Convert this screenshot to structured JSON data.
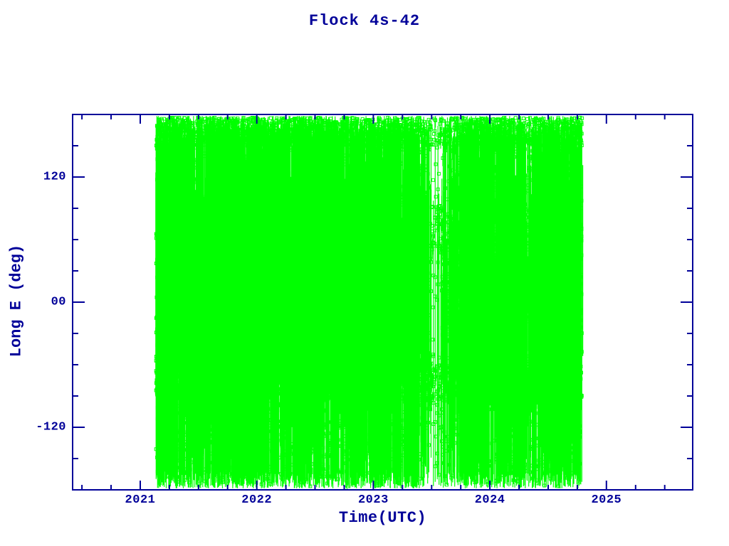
{
  "page": {
    "background": "#ffffff"
  },
  "chart_data": {
    "type": "line",
    "title": "Flock 4s-42",
    "xlabel": "Time(UTC)",
    "ylabel": "Long E (deg)",
    "axis_color": "#000099",
    "data_color": "#00ff00",
    "grid": false,
    "legend": null,
    "xlim": [
      2020.42,
      2025.74
    ],
    "ylim": [
      -180,
      180
    ],
    "x_ticks": [
      {
        "value": 2021,
        "label": "2021"
      },
      {
        "value": 2022,
        "label": "2022"
      },
      {
        "value": 2023,
        "label": "2023"
      },
      {
        "value": 2024,
        "label": "2024"
      },
      {
        "value": 2025,
        "label": "2025"
      }
    ],
    "x_minor_step": 0.25,
    "y_ticks": [
      {
        "value": 120,
        "label": "120"
      },
      {
        "value": 0,
        "label": "00"
      },
      {
        "value": -120,
        "label": "-120"
      }
    ],
    "y_minor_step": 30,
    "series": [
      {
        "name": "satellite-longitude-ground-track",
        "marker": "open-square",
        "color": "#00ff00",
        "description": "Dense wrap-around longitude-vs-time traces spanning -180 to +180 deg, rendered as near-vertical green lines with small open-square data markers",
        "coverage": {
          "t_start": 2021.135,
          "t_end": 2024.79
        }
      }
    ],
    "render": {
      "seed": 1337,
      "passes": 2600,
      "density_intervals": [
        [
          2021.135,
          2023.4,
          1.0
        ],
        [
          2023.4,
          2023.47,
          0.55
        ],
        [
          2023.47,
          2023.58,
          0.13
        ],
        [
          2023.58,
          2023.72,
          0.55
        ],
        [
          2023.72,
          2024.79,
          0.97
        ]
      ],
      "marker_bands": [
        {
          "name": "north-edge-cluster",
          "t": [
            2021.135,
            2024.79
          ],
          "deg": [
            146,
            177
          ],
          "count": 700
        },
        {
          "name": "south-accumulation-band",
          "t": [
            2021.135,
            2024.79
          ],
          "deg": [
            -95,
            -58
          ],
          "count": 950
        },
        {
          "name": "late-mid-north-cluster",
          "t": [
            2023.5,
            2024.6
          ],
          "deg": [
            50,
            95
          ],
          "count": 380
        },
        {
          "name": "late-mid-fill",
          "t": [
            2023.58,
            2024.45
          ],
          "deg": [
            -65,
            65
          ],
          "count": 500
        },
        {
          "name": "gap-sparse-points",
          "t": [
            2023.44,
            2023.6
          ],
          "deg": [
            -150,
            150
          ],
          "count": 45
        }
      ],
      "short_segments": {
        "t": [
          2023.55,
          2024.55
        ],
        "deg": [
          -110,
          110
        ],
        "count": 260,
        "len_deg": [
          12,
          70
        ]
      }
    }
  }
}
